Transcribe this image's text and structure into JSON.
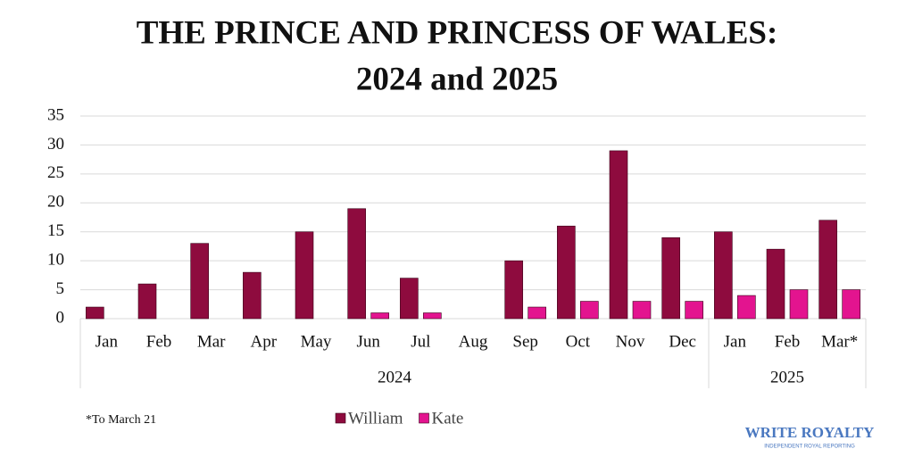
{
  "chart_data": {
    "type": "bar",
    "title": "THE PRINCE AND PRINCESS OF WALES:",
    "subtitle": "2024 and 2025",
    "categories": [
      "Jan",
      "Feb",
      "Mar",
      "Apr",
      "May",
      "Jun",
      "Jul",
      "Aug",
      "Sep",
      "Oct",
      "Nov",
      "Dec",
      "Jan",
      "Feb",
      "Mar*"
    ],
    "groups": [
      {
        "label": "2024",
        "count": 12
      },
      {
        "label": "2025",
        "count": 3
      }
    ],
    "series": [
      {
        "name": "William",
        "color": "#8e0b3e",
        "values": [
          2,
          6,
          13,
          8,
          15,
          19,
          7,
          0,
          10,
          16,
          29,
          14,
          15,
          12,
          17
        ]
      },
      {
        "name": "Kate",
        "color": "#e3148f",
        "values": [
          0,
          0,
          0,
          0,
          0,
          1,
          1,
          0,
          2,
          3,
          3,
          3,
          4,
          5,
          5
        ]
      }
    ],
    "ylim": [
      0,
      35
    ],
    "yticks": [
      0,
      5,
      10,
      15,
      20,
      25,
      30,
      35
    ],
    "grid": true,
    "footnote": "*To March 21",
    "brand": {
      "name": "WRITE ROYALTY",
      "tagline": "INDEPENDENT ROYAL REPORTING"
    }
  }
}
